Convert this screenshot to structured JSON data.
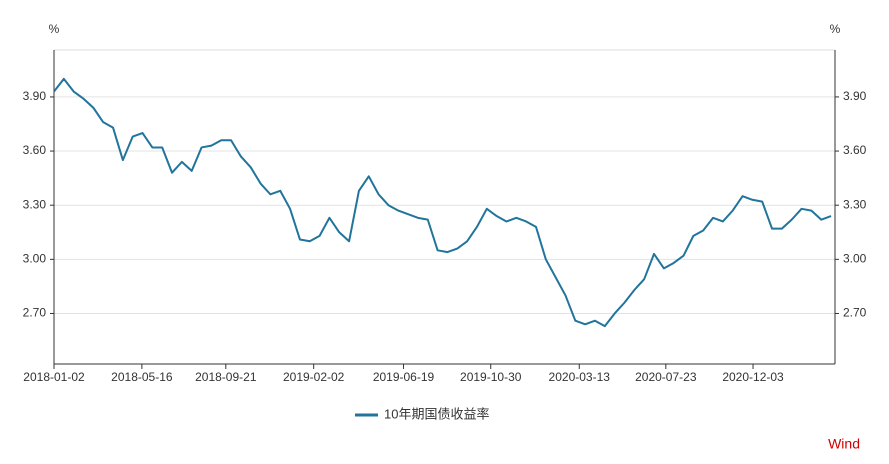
{
  "chart_data": {
    "type": "line",
    "ylabel": "%",
    "y2label": "%",
    "source": "Wind",
    "x": [
      "2018-01-02",
      "2018-01-17",
      "2018-02-01",
      "2018-02-16",
      "2018-03-03",
      "2018-03-18",
      "2018-04-02",
      "2018-04-17",
      "2018-05-02",
      "2018-05-17",
      "2018-06-01",
      "2018-06-16",
      "2018-07-01",
      "2018-07-16",
      "2018-07-31",
      "2018-08-15",
      "2018-08-30",
      "2018-09-14",
      "2018-09-29",
      "2018-10-14",
      "2018-10-29",
      "2018-11-13",
      "2018-11-28",
      "2018-12-13",
      "2018-12-28",
      "2019-01-12",
      "2019-01-27",
      "2019-02-11",
      "2019-02-26",
      "2019-03-13",
      "2019-03-28",
      "2019-04-12",
      "2019-04-27",
      "2019-05-12",
      "2019-05-27",
      "2019-06-11",
      "2019-06-26",
      "2019-07-11",
      "2019-07-26",
      "2019-08-10",
      "2019-08-25",
      "2019-09-09",
      "2019-09-24",
      "2019-10-09",
      "2019-10-24",
      "2019-11-08",
      "2019-11-23",
      "2019-12-08",
      "2019-12-23",
      "2020-01-07",
      "2020-01-22",
      "2020-02-06",
      "2020-02-21",
      "2020-03-07",
      "2020-03-22",
      "2020-04-06",
      "2020-04-21",
      "2020-05-06",
      "2020-05-21",
      "2020-06-05",
      "2020-06-20",
      "2020-07-05",
      "2020-07-20",
      "2020-08-04",
      "2020-08-19",
      "2020-09-03",
      "2020-09-18",
      "2020-10-03",
      "2020-10-18",
      "2020-11-02",
      "2020-11-17",
      "2020-12-02",
      "2020-12-17",
      "2021-01-01",
      "2021-01-16",
      "2021-01-31",
      "2021-02-15",
      "2021-03-02",
      "2021-03-17",
      "2021-04-01"
    ],
    "series": [
      {
        "name": "10年期国债收益率",
        "color": "#21749b",
        "values": [
          3.93,
          4.0,
          3.93,
          3.89,
          3.84,
          3.76,
          3.73,
          3.55,
          3.68,
          3.7,
          3.62,
          3.62,
          3.48,
          3.54,
          3.49,
          3.62,
          3.63,
          3.66,
          3.66,
          3.57,
          3.51,
          3.42,
          3.36,
          3.38,
          3.28,
          3.11,
          3.1,
          3.13,
          3.23,
          3.15,
          3.1,
          3.38,
          3.46,
          3.36,
          3.3,
          3.27,
          3.25,
          3.23,
          3.22,
          3.05,
          3.04,
          3.06,
          3.1,
          3.18,
          3.28,
          3.24,
          3.21,
          3.23,
          3.21,
          3.18,
          3.0,
          2.9,
          2.8,
          2.66,
          2.64,
          2.66,
          2.63,
          2.7,
          2.76,
          2.83,
          2.89,
          3.03,
          2.95,
          2.98,
          3.02,
          3.13,
          3.16,
          3.23,
          3.21,
          3.27,
          3.35,
          3.33,
          3.32,
          3.17,
          3.17,
          3.22,
          3.28,
          3.27,
          3.22,
          3.24
        ]
      }
    ],
    "xlim": [
      "2018-01-02",
      "2021-04-07"
    ],
    "xticks": [
      "2018-01-02",
      "2018-05-16",
      "2018-09-21",
      "2019-02-02",
      "2019-06-19",
      "2019-10-30",
      "2020-03-13",
      "2020-07-23",
      "2020-12-03"
    ],
    "ylim": [
      2.42,
      4.16
    ],
    "yticks": [
      {
        "value": 2.7,
        "label": "2.70"
      },
      {
        "value": 3.0,
        "label": "3.00"
      },
      {
        "value": 3.3,
        "label": "3.30"
      },
      {
        "value": 3.6,
        "label": "3.60"
      },
      {
        "value": 3.9,
        "label": "3.90"
      }
    ],
    "y2lim": [
      2.42,
      4.16
    ],
    "y2ticks": [
      {
        "value": 2.7,
        "label": "2.70"
      },
      {
        "value": 3.0,
        "label": "3.00"
      },
      {
        "value": 3.3,
        "label": "3.30"
      },
      {
        "value": 3.6,
        "label": "3.60"
      },
      {
        "value": 3.9,
        "label": "3.90"
      }
    ],
    "grid": true
  }
}
